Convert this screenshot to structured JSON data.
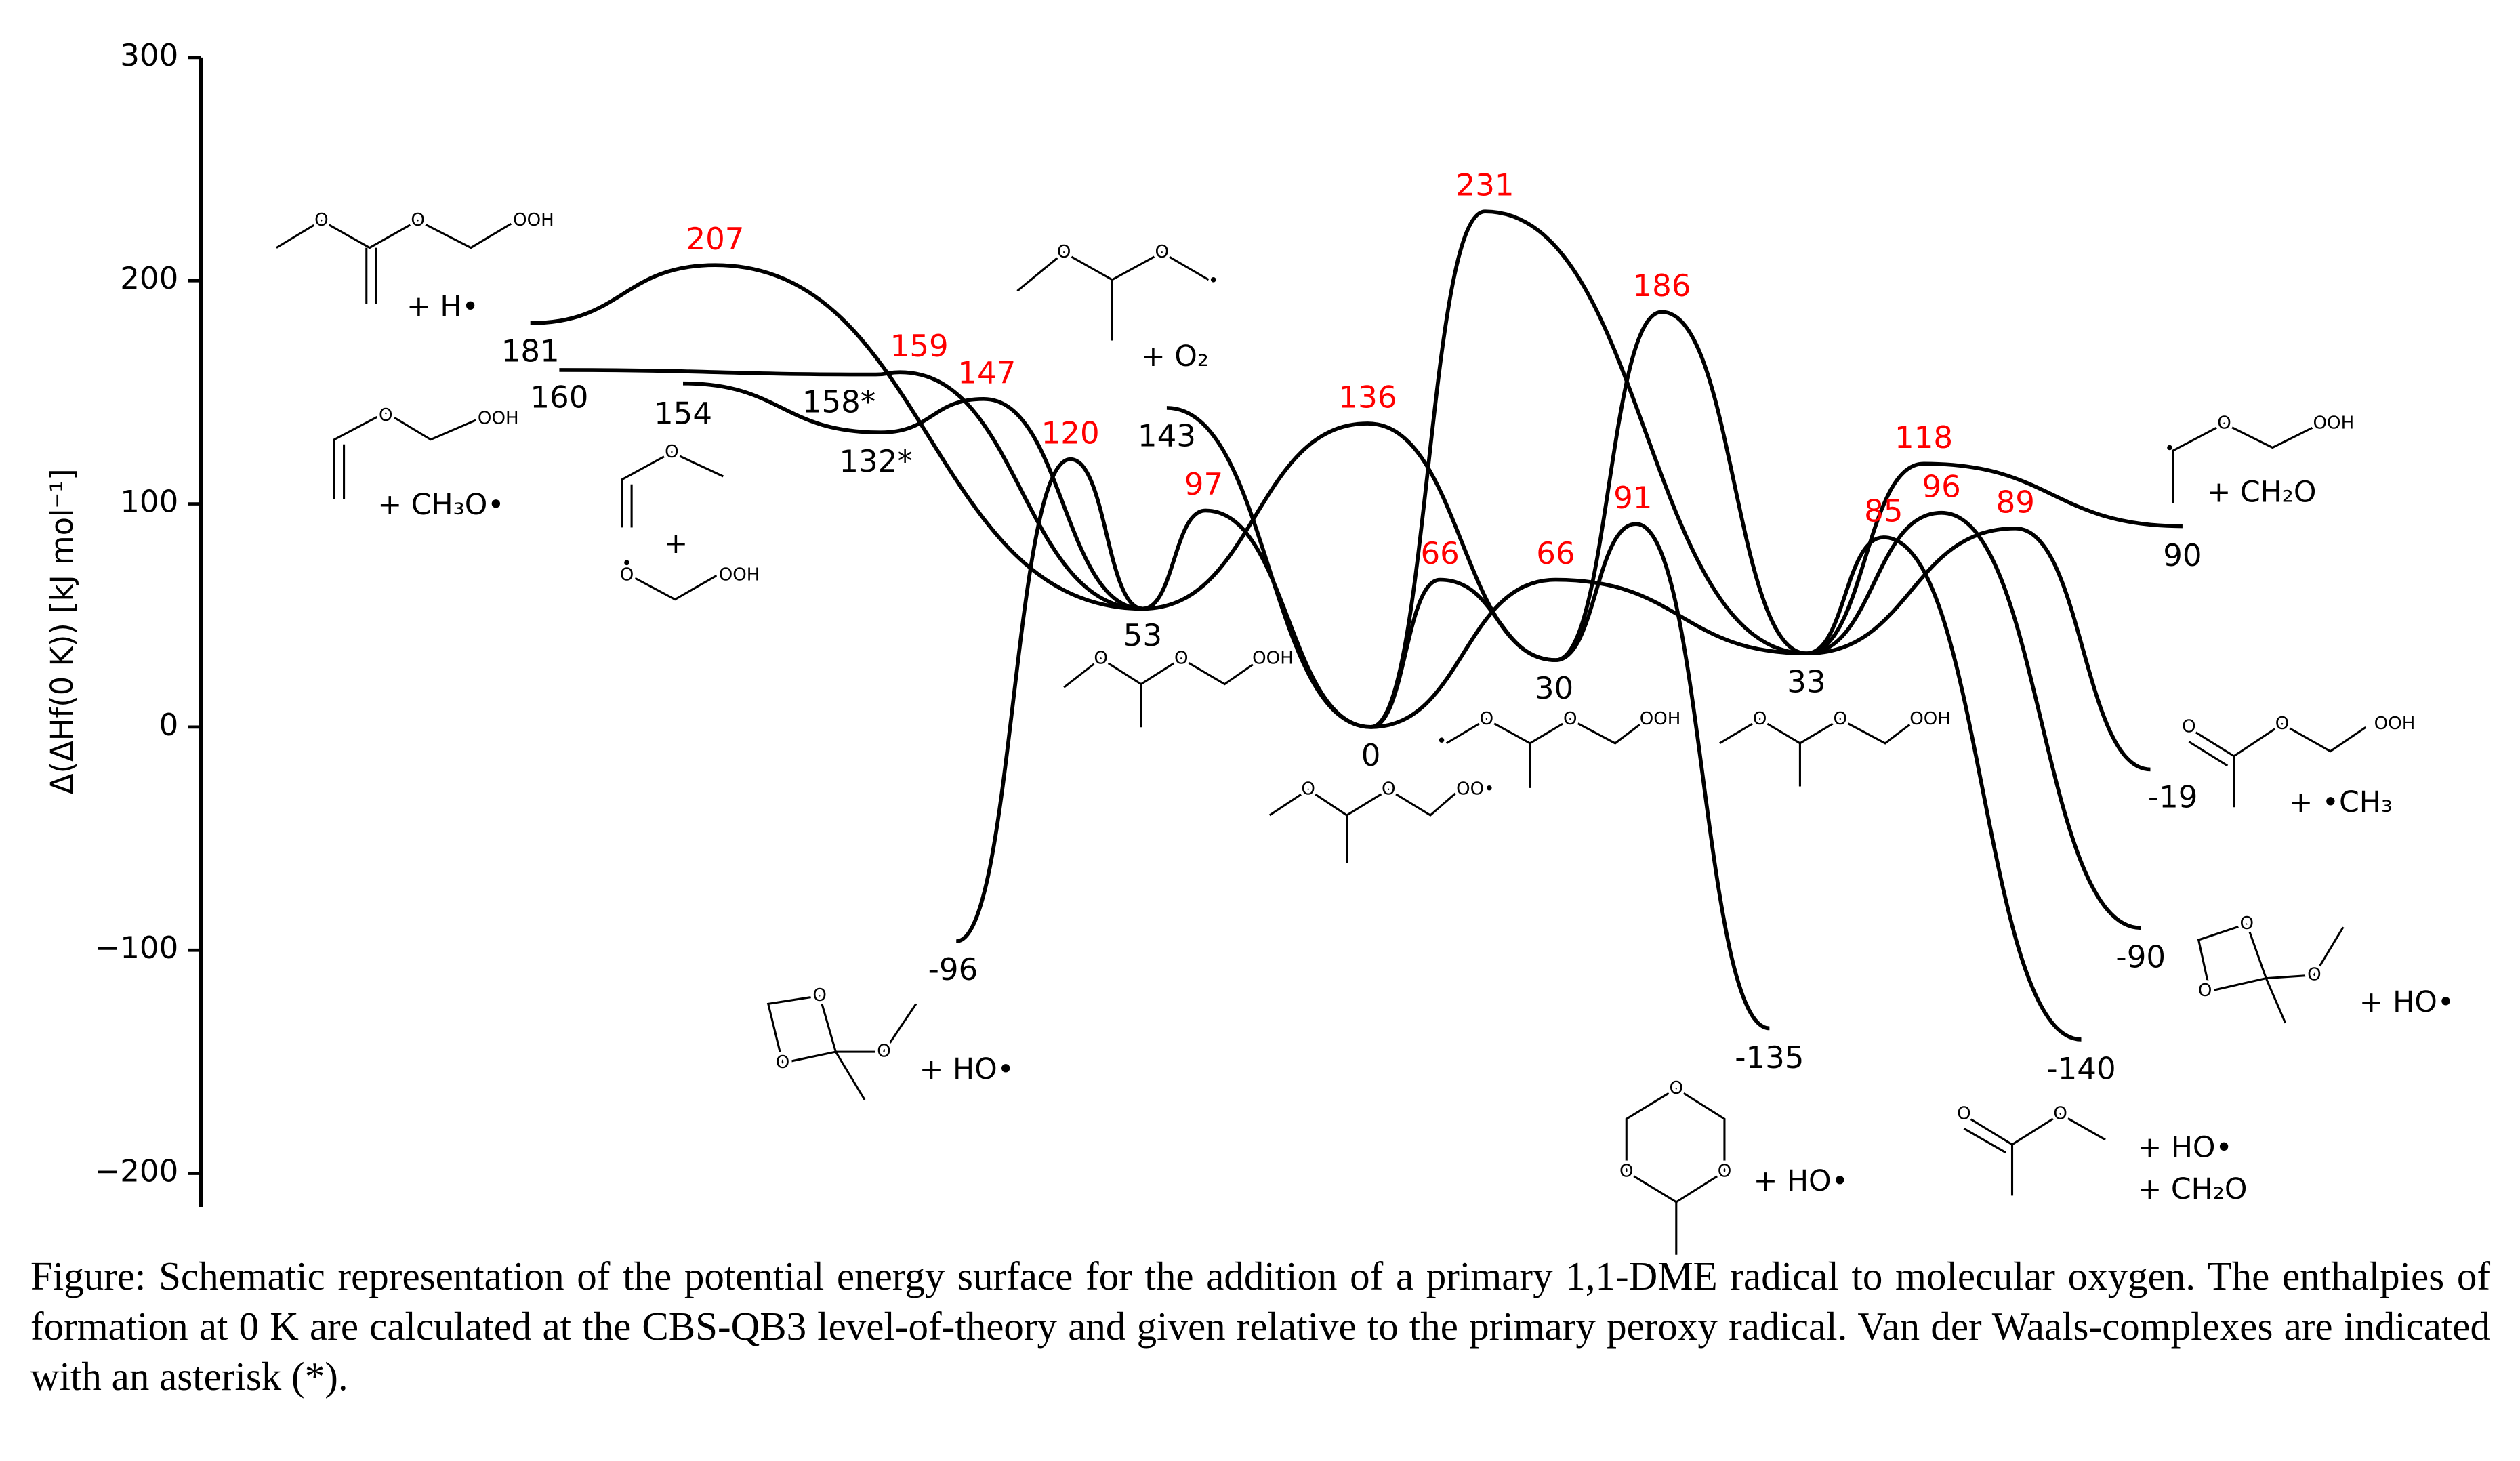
{
  "chart_data": {
    "type": "energy-diagram",
    "y_label": "Δ(ΔHf(0 K)) [kJ mol⁻¹]",
    "ylim": [
      -215,
      300
    ],
    "yticks": [
      {
        "value": -200,
        "label": "−200"
      },
      {
        "value": -100,
        "label": "−100"
      },
      0,
      100,
      200,
      300
    ],
    "line_color": "#000000",
    "minima": {
      "color": "#000000",
      "values": [
        181,
        160,
        154,
        158,
        132,
        53,
        143,
        -96,
        0,
        30,
        -135,
        33,
        90,
        -19,
        -90,
        -140
      ],
      "value_labels": [
        "181",
        "160",
        "154",
        "158*",
        "132*",
        "53",
        "143",
        "-96",
        "0",
        "30",
        "-135",
        "33",
        "90",
        "-19",
        "-90",
        "-140"
      ]
    },
    "transition_states": {
      "color": "#ff0000",
      "values": [
        207,
        159,
        147,
        120,
        97,
        136,
        231,
        66,
        66,
        91,
        186,
        118,
        85,
        96,
        89
      ]
    },
    "annotations": [
      "+ H•",
      "+ CH₃O•",
      "+",
      "+ O₂",
      "+ HO•",
      "+ HO•",
      "+ HO•",
      "+ CH₂O",
      "+ CH₂O",
      "+ •CH₃",
      "+ HO•"
    ],
    "structures": [
      [
        "O",
        "O",
        "OOH"
      ],
      [
        "O",
        "OOH"
      ],
      [
        "O"
      ],
      [
        "O",
        "OOH"
      ],
      [
        "O",
        "O"
      ],
      [
        "O",
        "O",
        "OOH"
      ],
      [
        "O",
        "O",
        "OO•"
      ],
      [
        "O",
        "O",
        "OOH"
      ],
      [
        "O",
        "O",
        "OOH"
      ],
      [
        "O",
        "O",
        "O"
      ],
      [
        "O",
        "O",
        "O"
      ],
      [
        "O",
        "O"
      ],
      [
        "O",
        "OOH"
      ],
      [
        "O",
        "O",
        "OOH"
      ],
      [
        "O",
        "O",
        "O"
      ]
    ],
    "caption": "Figure: Schematic representation of the potential energy surface for the addition of a primary 1,1-DME radical to molecular oxygen. The enthalpies of formation at 0 K are calculated at the CBS-QB3 level-of-theory and given relative to the primary peroxy radical. Van der Waals-complexes are indicated with an asterisk (*)."
  }
}
